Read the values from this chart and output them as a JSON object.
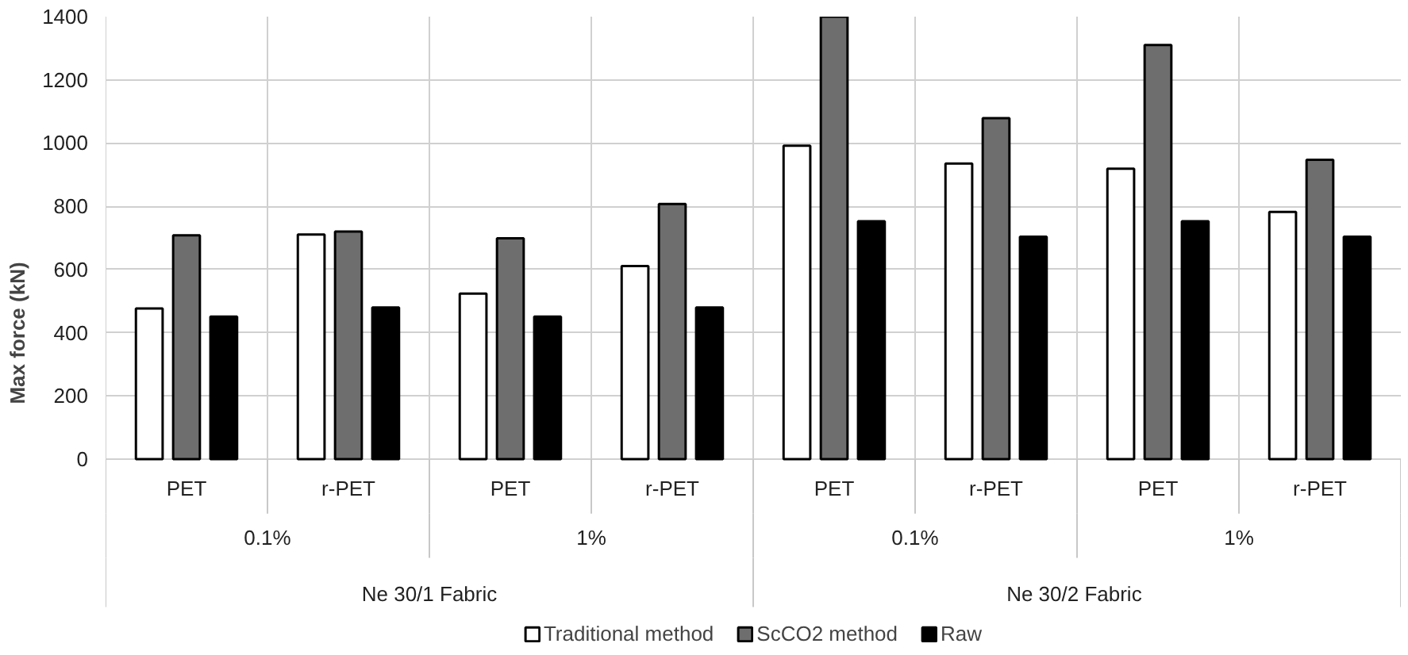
{
  "chart_data": {
    "type": "bar",
    "ylabel": "Max force (kN)",
    "categories": [
      "PET",
      "r-PET",
      "PET",
      "r-PET",
      "PET",
      "r-PET",
      "PET",
      "r-PET"
    ],
    "annotations": [
      "0.1%",
      "1%",
      "0.1%",
      "1%",
      "Ne 30/1 Fabric",
      "Ne 30/2  Fabric"
    ],
    "series": [
      {
        "name": "Traditional method",
        "color": "#ffffff",
        "values": [
          477,
          711,
          524,
          611,
          992,
          935,
          919,
          782
        ]
      },
      {
        "name": "ScCO2 method",
        "color": "#6e6e6e",
        "values": [
          708,
          720,
          699,
          807,
          1400,
          1079,
          1310,
          947
        ]
      },
      {
        "name": "Raw",
        "color": "#000000",
        "values": [
          451,
          480,
          451,
          480,
          753,
          704,
          753,
          704
        ]
      }
    ],
    "ylim": [
      0,
      1400
    ],
    "yticks": [
      0,
      200,
      400,
      600,
      800,
      1000,
      1200,
      1400
    ],
    "grid": true,
    "legend": "bottom"
  }
}
